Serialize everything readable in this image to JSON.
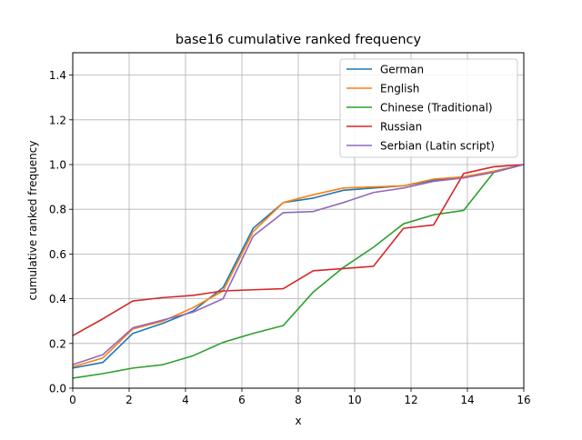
{
  "chart_data": {
    "type": "line",
    "title": "base16 cumulative ranked frequency",
    "xlabel": "x",
    "ylabel": "cumulative ranked frequency",
    "xlim": [
      0,
      16
    ],
    "ylim": [
      0,
      1.5
    ],
    "xticks": [
      0,
      2,
      4,
      6,
      8,
      10,
      12,
      14,
      16
    ],
    "yticks": [
      0.0,
      0.2,
      0.4,
      0.6,
      0.8,
      1.0,
      1.2,
      1.4
    ],
    "xtick_labels": [
      "0",
      "2",
      "4",
      "6",
      "8",
      "10",
      "12",
      "14",
      "16"
    ],
    "ytick_labels": [
      "0.0",
      "0.2",
      "0.4",
      "0.6",
      "0.8",
      "1.0",
      "1.2",
      "1.4"
    ],
    "grid": true,
    "legend_position": "upper right",
    "x": [
      0,
      1.067,
      2.133,
      3.2,
      4.267,
      5.333,
      6.4,
      7.467,
      8.533,
      9.6,
      10.667,
      11.733,
      12.8,
      13.867,
      14.933,
      16
    ],
    "series": [
      {
        "name": "German",
        "color": "#1f77b4",
        "values": [
          0.09,
          0.115,
          0.245,
          0.29,
          0.345,
          0.45,
          0.715,
          0.83,
          0.85,
          0.885,
          0.895,
          0.905,
          0.93,
          0.945,
          0.97,
          1.0
        ]
      },
      {
        "name": "English",
        "color": "#ff7f0e",
        "values": [
          0.095,
          0.135,
          0.265,
          0.3,
          0.36,
          0.435,
          0.7,
          0.83,
          0.865,
          0.895,
          0.9,
          0.905,
          0.935,
          0.945,
          0.97,
          1.0
        ]
      },
      {
        "name": "Chinese (Traditional)",
        "color": "#2ca02c",
        "values": [
          0.045,
          0.065,
          0.09,
          0.105,
          0.145,
          0.205,
          0.245,
          0.28,
          0.43,
          0.54,
          0.63,
          0.735,
          0.775,
          0.795,
          0.965,
          1.0
        ]
      },
      {
        "name": "Russian",
        "color": "#d62728",
        "values": [
          0.235,
          0.31,
          0.39,
          0.405,
          0.415,
          0.435,
          0.44,
          0.445,
          0.525,
          0.535,
          0.545,
          0.715,
          0.73,
          0.96,
          0.99,
          1.0
        ]
      },
      {
        "name": "Serbian (Latin script)",
        "color": "#9467bd",
        "values": [
          0.105,
          0.15,
          0.27,
          0.305,
          0.34,
          0.4,
          0.68,
          0.785,
          0.79,
          0.83,
          0.875,
          0.895,
          0.925,
          0.94,
          0.965,
          1.0
        ]
      }
    ]
  }
}
